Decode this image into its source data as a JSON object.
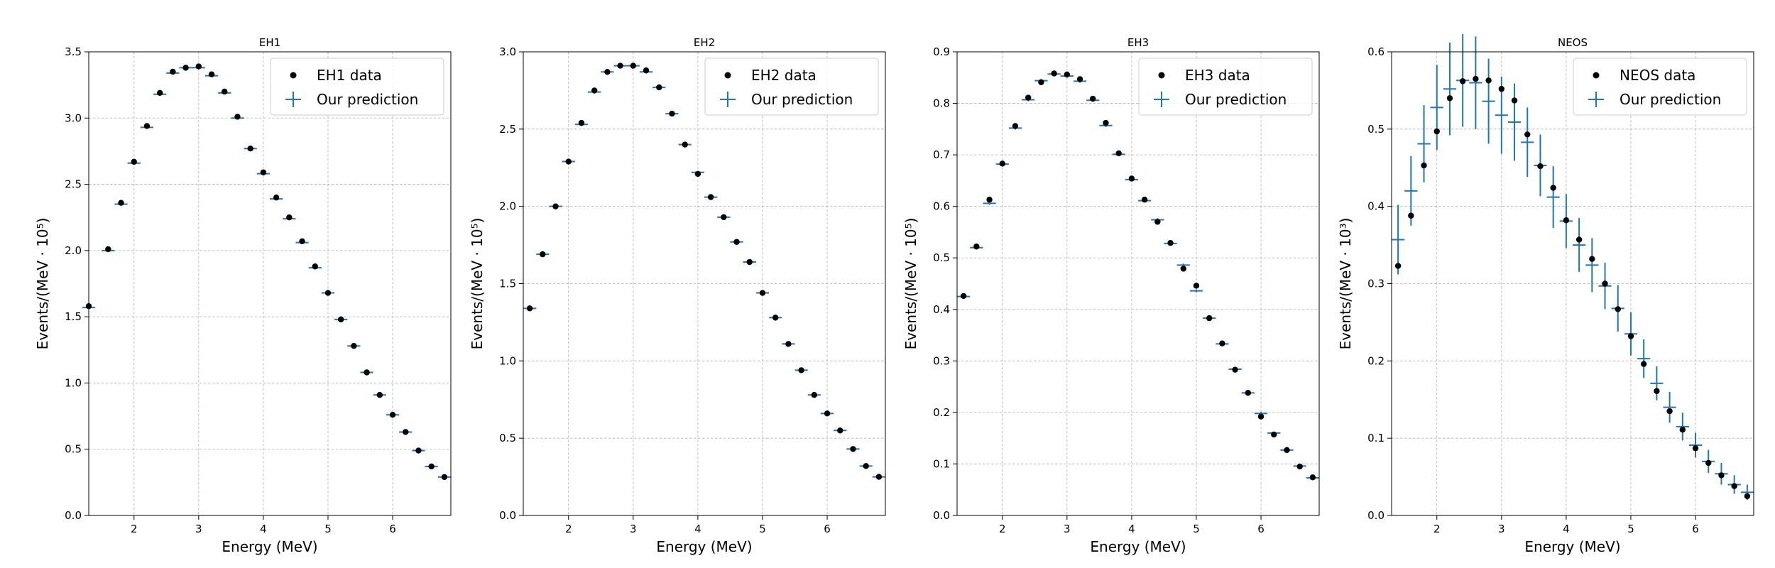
{
  "chart_data": [
    {
      "type": "scatter",
      "title": "EH1",
      "xlabel": "Energy (MeV)",
      "ylabel": "Events/(MeV · 10⁵)",
      "xlim": [
        1.3,
        6.9
      ],
      "ylim": [
        0,
        3.5
      ],
      "xticks": [
        "2",
        "3",
        "4",
        "5",
        "6"
      ],
      "yticks": [
        "0.0",
        "0.5",
        "1.0",
        "1.5",
        "2.0",
        "2.5",
        "3.0",
        "3.5"
      ],
      "grid": true,
      "legend_position": "top-right",
      "series": [
        {
          "name": "EH1 data",
          "marker": "dot",
          "x": [
            1.3,
            1.6,
            1.8,
            2.0,
            2.2,
            2.4,
            2.6,
            2.8,
            3.0,
            3.2,
            3.4,
            3.6,
            3.8,
            4.0,
            4.2,
            4.4,
            4.6,
            4.8,
            5.0,
            5.2,
            5.4,
            5.6,
            5.8,
            6.0,
            6.2,
            6.4,
            6.6,
            6.8
          ],
          "y": [
            1.58,
            2.01,
            2.36,
            2.67,
            2.94,
            3.19,
            3.35,
            3.38,
            3.39,
            3.33,
            3.2,
            3.01,
            2.77,
            2.59,
            2.4,
            2.25,
            2.07,
            1.88,
            1.68,
            1.48,
            1.28,
            1.08,
            0.91,
            0.76,
            0.63,
            0.49,
            0.37,
            0.29
          ]
        },
        {
          "name": "Our prediction",
          "marker": "errorbar",
          "color": "#1f77b4",
          "x": [
            1.3,
            1.6,
            1.8,
            2.0,
            2.2,
            2.4,
            2.6,
            2.8,
            3.0,
            3.2,
            3.4,
            3.6,
            3.8,
            4.0,
            4.2,
            4.4,
            4.6,
            4.8,
            5.0,
            5.2,
            5.4,
            5.6,
            5.8,
            6.0,
            6.2,
            6.4,
            6.6,
            6.8
          ],
          "y": [
            1.57,
            2.0,
            2.35,
            2.66,
            2.93,
            3.18,
            3.34,
            3.38,
            3.38,
            3.32,
            3.19,
            3.0,
            2.77,
            2.58,
            2.39,
            2.24,
            2.06,
            1.87,
            1.68,
            1.48,
            1.28,
            1.08,
            0.91,
            0.76,
            0.63,
            0.49,
            0.37,
            0.29
          ],
          "yerr": [
            0.01,
            0.01,
            0.01,
            0.01,
            0.01,
            0.01,
            0.01,
            0.01,
            0.01,
            0.01,
            0.01,
            0.01,
            0.01,
            0.01,
            0.01,
            0.01,
            0.01,
            0.01,
            0.01,
            0.01,
            0.01,
            0.01,
            0.01,
            0.01,
            0.01,
            0.01,
            0.01,
            0.01
          ]
        }
      ]
    },
    {
      "type": "scatter",
      "title": "EH2",
      "xlabel": "Energy (MeV)",
      "ylabel": "Events/(MeV · 10⁵)",
      "xlim": [
        1.3,
        6.9
      ],
      "ylim": [
        0,
        3.0
      ],
      "xticks": [
        "2",
        "3",
        "4",
        "5",
        "6"
      ],
      "yticks": [
        "0.0",
        "0.5",
        "1.0",
        "1.5",
        "2.0",
        "2.5",
        "3.0"
      ],
      "grid": true,
      "legend_position": "top-right",
      "series": [
        {
          "name": "EH2 data",
          "marker": "dot",
          "x": [
            1.4,
            1.6,
            1.8,
            2.0,
            2.2,
            2.4,
            2.6,
            2.8,
            3.0,
            3.2,
            3.4,
            3.6,
            3.8,
            4.0,
            4.2,
            4.4,
            4.6,
            4.8,
            5.0,
            5.2,
            5.4,
            5.6,
            5.8,
            6.0,
            6.2,
            6.4,
            6.6,
            6.8
          ],
          "y": [
            1.34,
            1.69,
            2.0,
            2.29,
            2.54,
            2.75,
            2.87,
            2.91,
            2.91,
            2.88,
            2.77,
            2.6,
            2.4,
            2.21,
            2.06,
            1.93,
            1.77,
            1.64,
            1.44,
            1.28,
            1.11,
            0.94,
            0.78,
            0.66,
            0.55,
            0.43,
            0.32,
            0.25
          ]
        },
        {
          "name": "Our prediction",
          "marker": "errorbar",
          "color": "#1f77b4",
          "x": [
            1.4,
            1.6,
            1.8,
            2.0,
            2.2,
            2.4,
            2.6,
            2.8,
            3.0,
            3.2,
            3.4,
            3.6,
            3.8,
            4.0,
            4.2,
            4.4,
            4.6,
            4.8,
            5.0,
            5.2,
            5.4,
            5.6,
            5.8,
            6.0,
            6.2,
            6.4,
            6.6,
            6.8
          ],
          "y": [
            1.34,
            1.69,
            2.0,
            2.29,
            2.53,
            2.74,
            2.87,
            2.91,
            2.91,
            2.87,
            2.77,
            2.6,
            2.4,
            2.22,
            2.06,
            1.93,
            1.77,
            1.64,
            1.44,
            1.28,
            1.11,
            0.94,
            0.78,
            0.66,
            0.55,
            0.43,
            0.32,
            0.25
          ],
          "yerr": [
            0.01,
            0.01,
            0.01,
            0.01,
            0.01,
            0.01,
            0.01,
            0.01,
            0.01,
            0.01,
            0.01,
            0.01,
            0.01,
            0.01,
            0.01,
            0.01,
            0.01,
            0.01,
            0.01,
            0.01,
            0.01,
            0.01,
            0.01,
            0.01,
            0.01,
            0.01,
            0.01,
            0.01
          ]
        }
      ]
    },
    {
      "type": "scatter",
      "title": "EH3",
      "xlabel": "Energy (MeV)",
      "ylabel": "Events/(MeV · 10⁵)",
      "xlim": [
        1.3,
        6.9
      ],
      "ylim": [
        0,
        0.9
      ],
      "xticks": [
        "2",
        "3",
        "4",
        "5",
        "6"
      ],
      "yticks": [
        "0.0",
        "0.1",
        "0.2",
        "0.3",
        "0.4",
        "0.5",
        "0.6",
        "0.7",
        "0.8",
        "0.9"
      ],
      "grid": true,
      "legend_position": "top-right",
      "series": [
        {
          "name": "EH3 data",
          "marker": "dot",
          "x": [
            1.4,
            1.6,
            1.8,
            2.0,
            2.2,
            2.4,
            2.6,
            2.8,
            3.0,
            3.2,
            3.4,
            3.6,
            3.8,
            4.0,
            4.2,
            4.4,
            4.6,
            4.8,
            5.0,
            5.2,
            5.4,
            5.6,
            5.8,
            6.0,
            6.2,
            6.4,
            6.6,
            6.8
          ],
          "y": [
            0.426,
            0.522,
            0.613,
            0.683,
            0.756,
            0.811,
            0.841,
            0.858,
            0.856,
            0.847,
            0.809,
            0.762,
            0.703,
            0.654,
            0.613,
            0.57,
            0.529,
            0.479,
            0.446,
            0.383,
            0.334,
            0.283,
            0.238,
            0.192,
            0.157,
            0.127,
            0.095,
            0.074
          ]
        },
        {
          "name": "Our prediction",
          "marker": "errorbar",
          "color": "#1f77b4",
          "x": [
            1.4,
            1.6,
            1.8,
            2.0,
            2.2,
            2.4,
            2.6,
            2.8,
            3.0,
            3.2,
            3.4,
            3.6,
            3.8,
            4.0,
            4.2,
            4.4,
            4.6,
            4.8,
            5.0,
            5.2,
            5.4,
            5.6,
            5.8,
            6.0,
            6.2,
            6.4,
            6.6,
            6.8
          ],
          "y": [
            0.425,
            0.52,
            0.606,
            0.682,
            0.752,
            0.807,
            0.844,
            0.857,
            0.853,
            0.843,
            0.806,
            0.757,
            0.701,
            0.652,
            0.611,
            0.574,
            0.528,
            0.486,
            0.436,
            0.383,
            0.333,
            0.284,
            0.238,
            0.198,
            0.16,
            0.127,
            0.096,
            0.073
          ],
          "yerr": [
            0.003,
            0.003,
            0.003,
            0.003,
            0.003,
            0.003,
            0.003,
            0.003,
            0.003,
            0.003,
            0.003,
            0.003,
            0.003,
            0.003,
            0.003,
            0.003,
            0.003,
            0.003,
            0.003,
            0.003,
            0.003,
            0.003,
            0.003,
            0.003,
            0.003,
            0.003,
            0.003,
            0.003
          ]
        }
      ]
    },
    {
      "type": "scatter",
      "title": "NEOS",
      "xlabel": "Energy (MeV)",
      "ylabel": "Events/(MeV · 10³)",
      "xlim": [
        1.3,
        6.9
      ],
      "ylim": [
        0,
        0.6
      ],
      "xticks": [
        "2",
        "3",
        "4",
        "5",
        "6"
      ],
      "yticks": [
        "0.0",
        "0.1",
        "0.2",
        "0.3",
        "0.4",
        "0.5",
        "0.6"
      ],
      "grid": true,
      "legend_position": "top-right",
      "series": [
        {
          "name": "NEOS data",
          "marker": "dot",
          "x": [
            1.4,
            1.6,
            1.8,
            2.0,
            2.2,
            2.4,
            2.6,
            2.8,
            3.0,
            3.2,
            3.4,
            3.6,
            3.8,
            4.0,
            4.2,
            4.4,
            4.6,
            4.8,
            5.0,
            5.2,
            5.4,
            5.6,
            5.8,
            6.0,
            6.2,
            6.4,
            6.6,
            6.8
          ],
          "y": [
            0.323,
            0.388,
            0.453,
            0.497,
            0.54,
            0.562,
            0.565,
            0.563,
            0.552,
            0.537,
            0.493,
            0.452,
            0.424,
            0.382,
            0.357,
            0.332,
            0.3,
            0.267,
            0.232,
            0.196,
            0.161,
            0.135,
            0.111,
            0.087,
            0.068,
            0.052,
            0.038,
            0.025
          ]
        },
        {
          "name": "Our prediction",
          "marker": "errorbar",
          "color": "#1f77b4",
          "x": [
            1.4,
            1.6,
            1.8,
            2.0,
            2.2,
            2.4,
            2.6,
            2.8,
            3.0,
            3.2,
            3.4,
            3.6,
            3.8,
            4.0,
            4.2,
            4.4,
            4.6,
            4.8,
            5.0,
            5.2,
            5.4,
            5.6,
            5.8,
            6.0,
            6.2,
            6.4,
            6.6,
            6.8
          ],
          "y": [
            0.357,
            0.42,
            0.481,
            0.528,
            0.552,
            0.563,
            0.56,
            0.536,
            0.518,
            0.509,
            0.483,
            0.453,
            0.412,
            0.381,
            0.35,
            0.324,
            0.297,
            0.268,
            0.235,
            0.203,
            0.171,
            0.14,
            0.115,
            0.091,
            0.07,
            0.054,
            0.04,
            0.03
          ],
          "yerr": [
            0.045,
            0.045,
            0.05,
            0.055,
            0.06,
            0.06,
            0.06,
            0.055,
            0.05,
            0.05,
            0.045,
            0.04,
            0.04,
            0.035,
            0.035,
            0.035,
            0.03,
            0.03,
            0.028,
            0.025,
            0.022,
            0.02,
            0.018,
            0.016,
            0.015,
            0.014,
            0.012,
            0.01
          ]
        }
      ]
    }
  ]
}
